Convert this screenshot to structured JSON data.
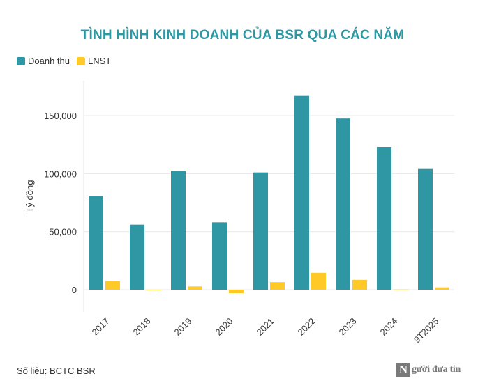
{
  "title": "TÌNH HÌNH KINH DOANH CỦA BSR QUA CÁC NĂM",
  "colors": {
    "accent": "#2b98a3",
    "revenue": "#2f97a3",
    "profit": "#ffc928",
    "grid": "#e8e8e8"
  },
  "chart_data": {
    "type": "bar",
    "title": "TÌNH HÌNH KINH DOANH CỦA BSR QUA CÁC NĂM",
    "xlabel": "",
    "ylabel": "Tỷ đồng",
    "ylim": [
      -10000,
      175000
    ],
    "yticks": [
      0,
      50000,
      100000,
      150000
    ],
    "ytick_labels": [
      "0",
      "50,000",
      "100,000",
      "150,000"
    ],
    "categories": [
      "2017",
      "2018",
      "2019",
      "2020",
      "2021",
      "2022",
      "2023",
      "2024",
      "9T2025"
    ],
    "series": [
      {
        "name": "Doanh thu",
        "color": "#2f97a3",
        "values": [
          81000,
          56000,
          102500,
          58000,
          101000,
          167000,
          147500,
          123000,
          104000
        ]
      },
      {
        "name": "LNST",
        "color": "#ffc928",
        "values": [
          7500,
          -300,
          2800,
          -3000,
          6500,
          14500,
          8500,
          200,
          2000
        ]
      }
    ],
    "legend_position": "top-left",
    "grid": true
  },
  "source": "Số liệu: BCTC BSR",
  "logo": {
    "mark": "N",
    "text": "gười đưa tin"
  }
}
